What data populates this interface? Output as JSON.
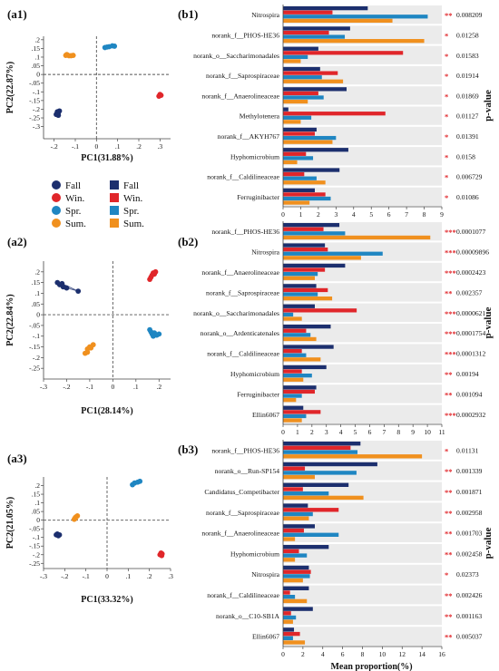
{
  "colors": {
    "fall": "#1c2f6e",
    "win": "#e0262a",
    "spr": "#1f86c2",
    "sum": "#f0901e",
    "band": "#ebebeb",
    "star": "#e0262a"
  },
  "legend": {
    "left_labels": [
      "Fall",
      "Win.",
      "Spr.",
      "Sum."
    ],
    "right_labels": [
      "Fall",
      "Win.",
      "Spr.",
      "Sum."
    ]
  },
  "chart_data": [
    {
      "panel_label": "(a1)",
      "type": "scatter",
      "xlabel": "PC1(31.88%)",
      "ylabel": "PC2(22.87%)",
      "xlim": [
        -0.25,
        0.35
      ],
      "ylim": [
        -0.37,
        0.22
      ],
      "xticks": [
        -0.2,
        -0.1,
        0,
        0.1,
        0.2,
        0.3
      ],
      "yticks": [
        0.2,
        0.15,
        0.1,
        0.05,
        0,
        -0.05,
        -0.1,
        -0.15,
        -0.2,
        -0.25,
        -0.3
      ],
      "series": [
        {
          "key": "fall",
          "points": [
            [
              -0.19,
              -0.23
            ],
            [
              -0.185,
              -0.215
            ],
            [
              -0.18,
              -0.22
            ],
            [
              -0.175,
              -0.21
            ],
            [
              -0.18,
              -0.235
            ]
          ]
        },
        {
          "key": "win",
          "points": [
            [
              0.295,
              -0.125
            ],
            [
              0.3,
              -0.115
            ],
            [
              0.305,
              -0.12
            ]
          ]
        },
        {
          "key": "spr",
          "points": [
            [
              0.04,
              0.155
            ],
            [
              0.06,
              0.16
            ],
            [
              0.075,
              0.165
            ],
            [
              0.085,
              0.163
            ],
            [
              0.05,
              0.158
            ]
          ]
        },
        {
          "key": "sum",
          "points": [
            [
              -0.14,
              0.115
            ],
            [
              -0.13,
              0.108
            ],
            [
              -0.12,
              0.108
            ],
            [
              -0.11,
              0.11
            ],
            [
              -0.145,
              0.11
            ]
          ]
        }
      ]
    },
    {
      "panel_label": "(a2)",
      "type": "scatter",
      "xlabel": "PC1(28.14%)",
      "ylabel": "PC2(22.84%)",
      "xlim": [
        -0.3,
        0.25
      ],
      "ylim": [
        -0.3,
        0.25
      ],
      "xticks": [
        -0.3,
        -0.2,
        -0.1,
        0,
        0.1,
        0.2
      ],
      "yticks": [
        0.2,
        0.15,
        0.1,
        0.05,
        0,
        -0.05,
        -0.1,
        -0.15,
        -0.2,
        -0.25
      ],
      "series": [
        {
          "key": "fall",
          "points": [
            [
              -0.24,
              0.15
            ],
            [
              -0.23,
              0.14
            ],
            [
              -0.22,
              0.145
            ],
            [
              -0.215,
              0.13
            ],
            [
              -0.2,
              0.125
            ],
            [
              -0.15,
              0.11
            ]
          ]
        },
        {
          "key": "win",
          "points": [
            [
              0.16,
              0.165
            ],
            [
              0.165,
              0.175
            ],
            [
              0.17,
              0.185
            ],
            [
              0.18,
              0.19
            ],
            [
              0.175,
              0.195
            ],
            [
              0.185,
              0.2
            ]
          ]
        },
        {
          "key": "spr",
          "points": [
            [
              0.16,
              -0.07
            ],
            [
              0.17,
              -0.09
            ],
            [
              0.18,
              -0.085
            ],
            [
              0.19,
              -0.095
            ],
            [
              0.2,
              -0.09
            ],
            [
              0.175,
              -0.1
            ],
            [
              0.165,
              -0.08
            ]
          ]
        },
        {
          "key": "sum",
          "points": [
            [
              -0.12,
              -0.18
            ],
            [
              -0.11,
              -0.16
            ],
            [
              -0.1,
              -0.15
            ],
            [
              -0.095,
              -0.155
            ],
            [
              -0.085,
              -0.14
            ],
            [
              -0.11,
              -0.175
            ]
          ]
        }
      ]
    },
    {
      "panel_label": "(a3)",
      "type": "scatter",
      "xlabel": "PC1(33.32%)",
      "ylabel": "PC2(21.05%)",
      "xlim": [
        -0.3,
        0.3
      ],
      "ylim": [
        -0.28,
        0.25
      ],
      "xticks": [
        -0.3,
        -0.2,
        -0.1,
        0,
        0.1,
        0.2,
        0.3
      ],
      "yticks": [
        0.2,
        0.15,
        0.1,
        0.05,
        0,
        -0.05,
        -0.1,
        -0.15,
        -0.2,
        -0.25
      ],
      "series": [
        {
          "key": "fall",
          "points": [
            [
              -0.24,
              -0.085
            ],
            [
              -0.235,
              -0.08
            ],
            [
              -0.23,
              -0.09
            ],
            [
              -0.225,
              -0.085
            ]
          ]
        },
        {
          "key": "win",
          "points": [
            [
              0.25,
              -0.2
            ],
            [
              0.255,
              -0.19
            ],
            [
              0.26,
              -0.195
            ],
            [
              0.258,
              -0.205
            ]
          ]
        },
        {
          "key": "spr",
          "points": [
            [
              0.12,
              0.205
            ],
            [
              0.13,
              0.215
            ],
            [
              0.145,
              0.22
            ],
            [
              0.155,
              0.225
            ]
          ]
        },
        {
          "key": "sum",
          "points": [
            [
              -0.155,
              0.005
            ],
            [
              -0.15,
              0.015
            ],
            [
              -0.145,
              0.02
            ],
            [
              -0.14,
              0.025
            ],
            [
              -0.15,
              0.01
            ]
          ]
        }
      ]
    },
    {
      "panel_label": "(b1)",
      "type": "bar",
      "categories": [
        "Nitrospira",
        "norank_f__PHOS-HE36",
        "norank_o__Saccharimonadales",
        "norank_f__Saprospiraceae",
        "norank_f__Anaerolineaceae",
        "Methylotenera",
        "norank_f__AKYH767",
        "Hyphomicrobium",
        "norank_f__Caldilineaceae",
        "Ferruginibacter"
      ],
      "pvalues": [
        "0.008209",
        "0.01258",
        "0.01583",
        "0.01914",
        "0.01869",
        "0.01127",
        "0.01391",
        "0.0158",
        "0.006729",
        "0.01086"
      ],
      "stars": [
        "**",
        "*",
        "*",
        "*",
        "*",
        "*",
        "*",
        "*",
        "*",
        "*"
      ],
      "xlim": [
        0,
        9
      ],
      "xticks": [
        0,
        1,
        2,
        3,
        4,
        5,
        6,
        7,
        8,
        9
      ],
      "xlabel": "",
      "ylabel": "p-value",
      "series": [
        {
          "key": "fall",
          "values": [
            4.8,
            3.8,
            2.0,
            2.1,
            3.6,
            0.3,
            1.9,
            3.7,
            3.2,
            1.8
          ]
        },
        {
          "key": "win",
          "values": [
            2.8,
            2.6,
            6.8,
            3.1,
            2.0,
            5.8,
            1.8,
            1.3,
            1.2,
            2.4
          ]
        },
        {
          "key": "spr",
          "values": [
            8.2,
            3.5,
            1.4,
            2.2,
            2.3,
            1.6,
            3.0,
            1.7,
            1.9,
            2.7
          ]
        },
        {
          "key": "sum",
          "values": [
            6.2,
            8.0,
            1.0,
            3.4,
            1.4,
            1.0,
            2.8,
            0.8,
            2.4,
            1.5
          ]
        }
      ]
    },
    {
      "panel_label": "(b2)",
      "type": "bar",
      "categories": [
        "norank_f__PHOS-HE36",
        "Nitrospira",
        "norank_f__Anaerolineaceae",
        "norank_f__Saprospiraceae",
        "norank_o__Saccharimonadales",
        "norank_o__Ardenticatenales",
        "norank_f__Caldilineaceae",
        "Hyphomicrobium",
        "Ferruginibacter",
        "Ellin6067"
      ],
      "pvalues": [
        "0.0001077",
        "0.00009896",
        "0.0002423",
        "0.002357",
        "0.0000621",
        "0.0001754",
        "0.0001312",
        "0.00194",
        "0.001094",
        "0.0002932"
      ],
      "stars": [
        "***",
        "***",
        "***",
        "**",
        "***",
        "***",
        "***",
        "**",
        "**",
        "***"
      ],
      "xlim": [
        0,
        11
      ],
      "xticks": [
        0,
        1,
        2,
        3,
        4,
        5,
        6,
        7,
        8,
        9,
        10,
        11
      ],
      "xlabel": "",
      "ylabel": "p-value",
      "series": [
        {
          "key": "fall",
          "values": [
            3.9,
            2.9,
            4.3,
            2.3,
            2.2,
            3.3,
            3.5,
            3.0,
            2.3,
            1.4
          ]
        },
        {
          "key": "win",
          "values": [
            2.8,
            3.1,
            2.9,
            3.1,
            5.1,
            1.6,
            1.3,
            1.3,
            2.2,
            2.6
          ]
        },
        {
          "key": "spr",
          "values": [
            4.3,
            6.9,
            2.4,
            2.4,
            0.7,
            1.9,
            1.6,
            2.0,
            1.3,
            1.6
          ]
        },
        {
          "key": "sum",
          "values": [
            10.2,
            5.4,
            2.2,
            3.4,
            1.3,
            2.3,
            2.6,
            1.4,
            0.9,
            1.3
          ]
        }
      ]
    },
    {
      "panel_label": "(b3)",
      "type": "bar",
      "categories": [
        "norank_f__PHOS-HE36",
        "norank_o__Run-SP154",
        "Candidatus_Competibacter",
        "norank_f__Saprospiraceae",
        "norank_f__Anaerolineaceae",
        "Hyphomicrobium",
        "Nitrospira",
        "norank_f__Caldilineaceae",
        "norank_o__C10-SB1A",
        "Ellin6067"
      ],
      "pvalues": [
        "0.01131",
        "0.001339",
        "0.001871",
        "0.002958",
        "0.001703",
        "0.002458",
        "0.02373",
        "0.002426",
        "0.001163",
        "0.005037"
      ],
      "stars": [
        "*",
        "**",
        "**",
        "**",
        "**",
        "**",
        "*",
        "**",
        "**",
        "**"
      ],
      "xlim": [
        0,
        16
      ],
      "xticks": [
        0,
        2,
        4,
        6,
        8,
        10,
        12,
        14,
        16
      ],
      "xlabel": "Mean proportion(%)",
      "ylabel": "p-value",
      "series": [
        {
          "key": "fall",
          "values": [
            7.8,
            9.5,
            6.6,
            2.5,
            3.2,
            4.6,
            2.6,
            2.6,
            3.0,
            1.1
          ]
        },
        {
          "key": "win",
          "values": [
            6.8,
            2.2,
            2.0,
            5.6,
            2.1,
            1.6,
            2.8,
            0.7,
            0.8,
            1.7
          ]
        },
        {
          "key": "spr",
          "values": [
            7.5,
            7.4,
            4.6,
            3.0,
            5.6,
            2.4,
            2.7,
            1.2,
            1.3,
            1.0
          ]
        },
        {
          "key": "sum",
          "values": [
            14.0,
            3.2,
            8.1,
            2.6,
            1.2,
            1.2,
            2.0,
            2.4,
            1.0,
            2.2
          ]
        }
      ]
    }
  ]
}
